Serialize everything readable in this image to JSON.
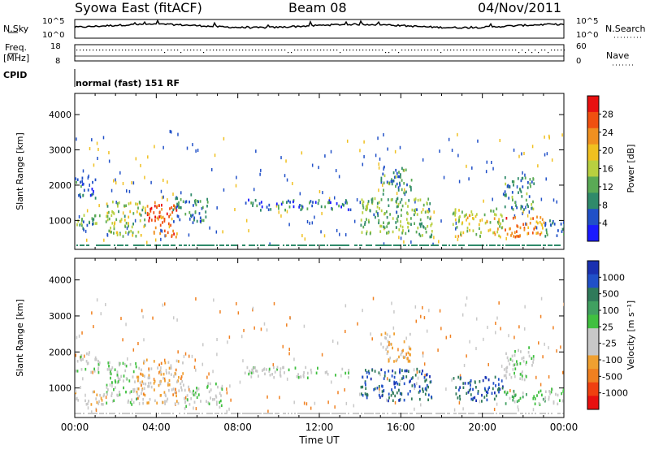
{
  "header": {
    "station": "Syowa East (fitACF)",
    "beam": "Beam 08",
    "date": "04/Nov/2011"
  },
  "top_panels": {
    "nsky_label": "N.Sky",
    "nsky_ticks": [
      "10^5",
      "10^0"
    ],
    "nsearch_label": "N.Search",
    "nsearch_ticks": [
      "10^5",
      "10^0"
    ],
    "freq_label_1": "Freq.",
    "freq_label_2": "[MHz]",
    "freq_ticks": [
      "18",
      "8"
    ],
    "nave_ticks": [
      "60",
      "0"
    ],
    "nave_label": "Nave",
    "cpid_label": "CPID",
    "cpid_value": "normal (fast) 151 RF"
  },
  "colors": {
    "power_scale": [
      "#1a1aff",
      "#2050c8",
      "#2f8a6a",
      "#5aaa55",
      "#b8d040",
      "#f0c020",
      "#f09020",
      "#f05010",
      "#e81010"
    ],
    "velocity_scale": [
      "#e81010",
      "#f04010",
      "#f08020",
      "#f0a030",
      "#c8c8c8",
      "#c8c8c8",
      "#40c040",
      "#40a060",
      "#2f7a5a",
      "#2050c8",
      "#1a30b0"
    ]
  },
  "chart_data": [
    {
      "type": "heatmap",
      "name": "power",
      "xlabel": "",
      "ylabel": "Slant Range [km]",
      "xlim": [
        0,
        24
      ],
      "ylim": [
        180,
        4600
      ],
      "y_ticks": [
        "1000",
        "2000",
        "3000",
        "4000"
      ],
      "colorbar": {
        "label": "Power [dB]",
        "ticks": [
          "4",
          "8",
          "12",
          "16",
          "20",
          "24",
          "28"
        ],
        "range": [
          0,
          30
        ]
      },
      "blobs": [
        {
          "t0": 0.0,
          "t1": 1.2,
          "r0": 700,
          "r1": 1200,
          "value": 10
        },
        {
          "t0": 0.0,
          "t1": 1.0,
          "r0": 1600,
          "r1": 2200,
          "value": 7
        },
        {
          "t0": 1.5,
          "t1": 3.5,
          "r0": 500,
          "r1": 1500,
          "value": 14
        },
        {
          "t0": 3.5,
          "t1": 5.0,
          "r0": 500,
          "r1": 1500,
          "value": 24
        },
        {
          "t0": 4.8,
          "t1": 6.5,
          "r0": 900,
          "r1": 1700,
          "value": 8
        },
        {
          "t0": 8.3,
          "t1": 13.5,
          "r0": 1250,
          "r1": 1550,
          "value": 7
        },
        {
          "t0": 14.0,
          "t1": 17.5,
          "r0": 500,
          "r1": 1600,
          "value": 11
        },
        {
          "t0": 15.0,
          "t1": 16.5,
          "r0": 1700,
          "r1": 2500,
          "value": 9
        },
        {
          "t0": 18.5,
          "t1": 21.0,
          "r0": 500,
          "r1": 1300,
          "value": 16
        },
        {
          "t0": 21.0,
          "t1": 23.0,
          "r0": 500,
          "r1": 1100,
          "value": 22
        },
        {
          "t0": 21.0,
          "t1": 22.5,
          "r0": 1200,
          "r1": 2200,
          "value": 9
        },
        {
          "t0": 23.0,
          "t1": 24.0,
          "r0": 500,
          "r1": 1000,
          "value": 8
        }
      ]
    },
    {
      "type": "heatmap",
      "name": "velocity",
      "xlabel": "Time UT",
      "ylabel": "Slant Range [km]",
      "xlim": [
        0,
        24
      ],
      "ylim": [
        180,
        4600
      ],
      "x_ticks": [
        "00:00",
        "04:00",
        "08:00",
        "12:00",
        "16:00",
        "20:00",
        "00:00"
      ],
      "y_ticks": [
        "1000",
        "2000",
        "3000",
        "4000"
      ],
      "colorbar": {
        "label": "Velocity [m s⁻¹]",
        "ticks": [
          "-1000",
          "-500",
          "-100",
          "-25",
          "25",
          "100",
          "500",
          "1000"
        ],
        "range": [
          -1200,
          1200
        ]
      },
      "blobs": [
        {
          "t0": 0.0,
          "t1": 1.2,
          "r0": 1400,
          "r1": 2000,
          "value": 0
        },
        {
          "t0": 0.0,
          "t1": 1.5,
          "r0": 500,
          "r1": 900,
          "value": -250
        },
        {
          "t0": 1.5,
          "t1": 3.0,
          "r0": 500,
          "r1": 1700,
          "value": 80
        },
        {
          "t0": 3.0,
          "t1": 5.3,
          "r0": 500,
          "r1": 1800,
          "value": -350
        },
        {
          "t0": 5.3,
          "t1": 7.2,
          "r0": 400,
          "r1": 1100,
          "value": 0
        },
        {
          "t0": 8.3,
          "t1": 13.5,
          "r0": 1250,
          "r1": 1550,
          "value": 0
        },
        {
          "t0": 14.0,
          "t1": 17.5,
          "r0": 600,
          "r1": 1500,
          "value": 800
        },
        {
          "t0": 15.0,
          "t1": 16.5,
          "r0": 1700,
          "r1": 2500,
          "value": -350
        },
        {
          "t0": 18.5,
          "t1": 21.0,
          "r0": 600,
          "r1": 1300,
          "value": 800
        },
        {
          "t0": 21.0,
          "t1": 23.0,
          "r0": 500,
          "r1": 900,
          "value": 200
        },
        {
          "t0": 21.0,
          "t1": 22.5,
          "r0": 1200,
          "r1": 2100,
          "value": 0
        },
        {
          "t0": 23.0,
          "t1": 24.0,
          "r0": 500,
          "r1": 1000,
          "value": 100
        }
      ]
    }
  ]
}
